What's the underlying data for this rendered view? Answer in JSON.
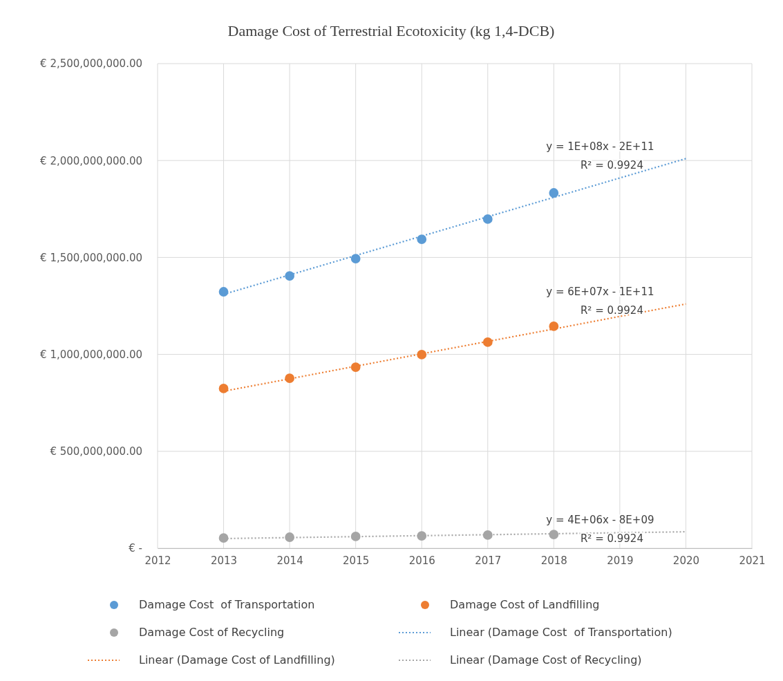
{
  "chart_data": {
    "type": "scatter",
    "title": "Damage Cost of Terrestrial Ecotoxicity (kg 1,4-DCB)",
    "x": [
      2013,
      2014,
      2015,
      2016,
      2017,
      2018,
      2019,
      2020
    ],
    "series": [
      {
        "name": "Damage Cost  of Transportation",
        "color": "#5b9bd5",
        "marker": "circle",
        "values": [
          1323000000,
          1405000000,
          1494000000,
          1594000000,
          1698000000,
          1833000000,
          null,
          null
        ]
      },
      {
        "name": "Damage Cost of Landfilling",
        "color": "#ed7d31",
        "marker": "circle",
        "values": [
          824000000,
          877000000,
          934000000,
          999000000,
          1063000000,
          1145000000,
          null,
          null
        ]
      },
      {
        "name": "Damage Cost of Recycling",
        "color": "#a5a5a5",
        "marker": "circle",
        "values": [
          53000000,
          57000000,
          61000000,
          64000000,
          68000000,
          71000000,
          null,
          null
        ]
      },
      {
        "name": "Linear (Damage Cost  of Transportation)",
        "type": "line",
        "color": "#5b9bd5",
        "line_style": "dotted",
        "marker": "none",
        "values": [
          1310000000,
          1410000000,
          1510000000,
          1610000000,
          1710000000,
          1810000000,
          1910000000,
          2010000000
        ]
      },
      {
        "name": "Linear (Damage Cost of Landfilling)",
        "type": "line",
        "color": "#ed7d31",
        "line_style": "dotted",
        "marker": "none",
        "values": [
          810000000,
          874000000,
          939000000,
          1003000000,
          1067000000,
          1131000000,
          1196000000,
          1260000000
        ]
      },
      {
        "name": "Linear (Damage Cost of Recycling)",
        "type": "line",
        "color": "#a5a5a5",
        "line_style": "dotted",
        "marker": "none",
        "values": [
          50000000,
          55000000,
          60000000,
          65000000,
          70000000,
          75000000,
          80000000,
          85000000
        ]
      }
    ],
    "xlim": [
      2012,
      2021
    ],
    "xticks": [
      2012,
      2013,
      2014,
      2015,
      2016,
      2017,
      2018,
      2019,
      2020,
      2021
    ],
    "ylim": [
      0,
      2500000000
    ],
    "yticks": [
      {
        "value": 0,
        "label": "€ -"
      },
      {
        "value": 500000000,
        "label": "€ 500,000,000.00"
      },
      {
        "value": 1000000000,
        "label": "€ 1,000,000,000.00"
      },
      {
        "value": 1500000000,
        "label": "€ 1,500,000,000.00"
      },
      {
        "value": 2000000000,
        "label": "€ 2,000,000,000.00"
      },
      {
        "value": 2500000000,
        "label": "€ 2,500,000,000.00"
      }
    ],
    "grid": true,
    "legend": "bottom",
    "annotations": [
      "y = 1E+08x - 2E+11",
      "R² = 0.9924",
      "y = 6E+07x - 1E+11",
      "R² = 0.9924",
      "y = 4E+06x - 8E+09",
      "R² = 0.9924"
    ]
  }
}
